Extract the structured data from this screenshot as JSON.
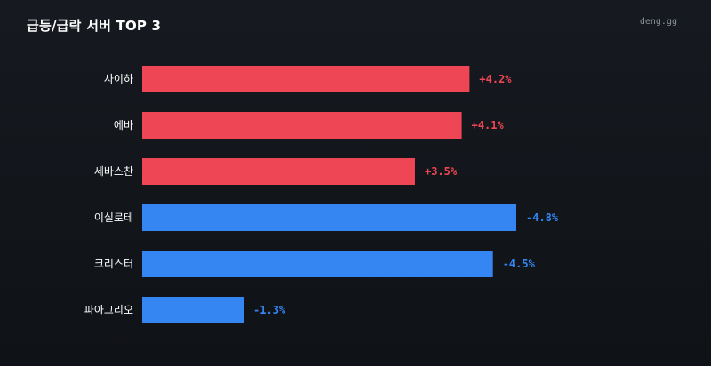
{
  "header": {
    "title": "급등/급락 서버 TOP 3",
    "brand": "deng.gg"
  },
  "colors": {
    "up": "#ef4655",
    "down": "#3586f3"
  },
  "chart_data": {
    "type": "bar",
    "orientation": "horizontal",
    "title": "급등/급락 서버 TOP 3",
    "xlabel": "",
    "ylabel": "",
    "grid": false,
    "legend": "none",
    "categories": [
      "사이하",
      "에바",
      "세바스찬",
      "이실로테",
      "크리스터",
      "파아그리오"
    ],
    "values": [
      4.2,
      4.1,
      3.5,
      -4.8,
      -4.5,
      -1.3
    ],
    "value_labels": [
      "+4.2%",
      "+4.1%",
      "+3.5%",
      "-4.8%",
      "-4.5%",
      "-1.3%"
    ],
    "direction": [
      "up",
      "up",
      "up",
      "down",
      "down",
      "down"
    ]
  }
}
